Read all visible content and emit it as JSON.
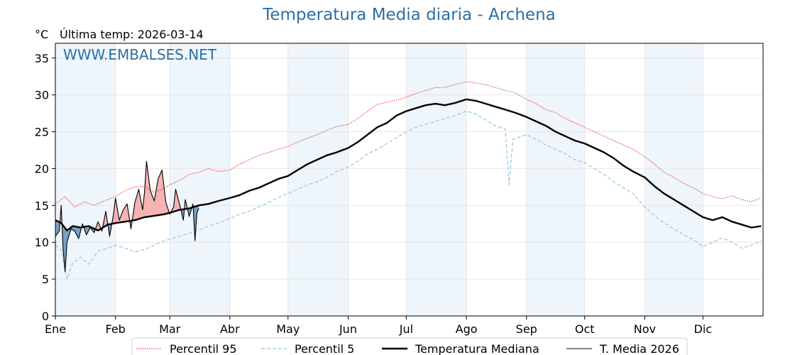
{
  "header": {
    "title": "Temperatura Media diaria - Archena",
    "unit": "°C",
    "last_temp": "Última temp: 2026-03-14"
  },
  "watermark": "WWW.EMBALSES.NET",
  "colors": {
    "p95": "#e8201c",
    "p5": "#8ec9d9",
    "median": "#000000",
    "current": "#000000",
    "above_fill": "#f4a6a6",
    "below_fill": "#5b8bb5",
    "band_fill": "#eef5fb",
    "title": "#2c6fa3"
  },
  "chart_data": {
    "type": "line",
    "title": "Temperatura Media diaria - Archena",
    "ylabel": "°C",
    "xlabel": "",
    "ylim": [
      0,
      37
    ],
    "xlim": [
      0,
      365
    ],
    "yticks": [
      0,
      5,
      10,
      15,
      20,
      25,
      30,
      35
    ],
    "month_ticks": [
      {
        "label": "Ene",
        "day": 0
      },
      {
        "label": "Feb",
        "day": 31
      },
      {
        "label": "Mar",
        "day": 59
      },
      {
        "label": "Abr",
        "day": 90
      },
      {
        "label": "May",
        "day": 120
      },
      {
        "label": "Jun",
        "day": 151
      },
      {
        "label": "Jul",
        "day": 181
      },
      {
        "label": "Ago",
        "day": 212
      },
      {
        "label": "Sep",
        "day": 243
      },
      {
        "label": "Oct",
        "day": 273
      },
      {
        "label": "Nov",
        "day": 304
      },
      {
        "label": "Dic",
        "day": 334
      }
    ],
    "shaded_months": [
      [
        0,
        31
      ],
      [
        59,
        90
      ],
      [
        120,
        151
      ],
      [
        181,
        212
      ],
      [
        243,
        273
      ],
      [
        304,
        334
      ]
    ],
    "grid": true,
    "legend_position": "bottom",
    "series": [
      {
        "name": "Percentil 95",
        "style": "dotted-red",
        "points": [
          [
            0,
            15.2
          ],
          [
            5,
            16.2
          ],
          [
            10,
            14.8
          ],
          [
            15,
            15.5
          ],
          [
            20,
            15.0
          ],
          [
            25,
            15.6
          ],
          [
            31,
            16.2
          ],
          [
            36,
            17.0
          ],
          [
            41,
            17.5
          ],
          [
            46,
            17.6
          ],
          [
            51,
            16.8
          ],
          [
            56,
            17.3
          ],
          [
            59,
            17.8
          ],
          [
            64,
            18.4
          ],
          [
            69,
            19.2
          ],
          [
            74,
            19.5
          ],
          [
            79,
            20.0
          ],
          [
            84,
            19.6
          ],
          [
            90,
            19.8
          ],
          [
            95,
            20.6
          ],
          [
            100,
            21.2
          ],
          [
            105,
            21.8
          ],
          [
            110,
            22.2
          ],
          [
            115,
            22.6
          ],
          [
            120,
            23.0
          ],
          [
            125,
            23.6
          ],
          [
            130,
            24.1
          ],
          [
            135,
            24.6
          ],
          [
            140,
            25.2
          ],
          [
            145,
            25.7
          ],
          [
            151,
            26.0
          ],
          [
            156,
            26.8
          ],
          [
            161,
            27.8
          ],
          [
            166,
            28.7
          ],
          [
            171,
            29.0
          ],
          [
            176,
            29.3
          ],
          [
            181,
            29.7
          ],
          [
            186,
            30.2
          ],
          [
            191,
            30.6
          ],
          [
            196,
            31.0
          ],
          [
            201,
            31.0
          ],
          [
            206,
            31.4
          ],
          [
            212,
            31.8
          ],
          [
            217,
            31.6
          ],
          [
            222,
            31.4
          ],
          [
            227,
            31.0
          ],
          [
            232,
            30.6
          ],
          [
            237,
            30.3
          ],
          [
            243,
            29.4
          ],
          [
            248,
            28.8
          ],
          [
            253,
            28.0
          ],
          [
            258,
            27.6
          ],
          [
            263,
            26.8
          ],
          [
            268,
            26.2
          ],
          [
            273,
            25.6
          ],
          [
            278,
            25.0
          ],
          [
            283,
            24.4
          ],
          [
            288,
            23.8
          ],
          [
            293,
            23.2
          ],
          [
            298,
            22.6
          ],
          [
            304,
            21.6
          ],
          [
            309,
            20.6
          ],
          [
            314,
            19.5
          ],
          [
            319,
            18.8
          ],
          [
            324,
            18.0
          ],
          [
            329,
            17.4
          ],
          [
            334,
            16.6
          ],
          [
            339,
            16.2
          ],
          [
            344,
            15.9
          ],
          [
            349,
            16.3
          ],
          [
            354,
            15.8
          ],
          [
            359,
            15.5
          ],
          [
            364,
            16.0
          ]
        ]
      },
      {
        "name": "Percentil 5",
        "style": "dashed-lightblue",
        "points": [
          [
            0,
            9.6
          ],
          [
            3,
            9.0
          ],
          [
            6,
            5.0
          ],
          [
            9,
            7.2
          ],
          [
            13,
            8.0
          ],
          [
            17,
            7.0
          ],
          [
            22,
            8.8
          ],
          [
            27,
            9.2
          ],
          [
            31,
            9.6
          ],
          [
            36,
            9.2
          ],
          [
            41,
            8.7
          ],
          [
            46,
            9.0
          ],
          [
            51,
            9.6
          ],
          [
            56,
            10.2
          ],
          [
            59,
            10.4
          ],
          [
            64,
            10.8
          ],
          [
            69,
            11.2
          ],
          [
            74,
            11.7
          ],
          [
            79,
            12.2
          ],
          [
            84,
            12.6
          ],
          [
            90,
            13.2
          ],
          [
            95,
            13.8
          ],
          [
            100,
            14.2
          ],
          [
            105,
            14.8
          ],
          [
            110,
            15.4
          ],
          [
            115,
            16.1
          ],
          [
            120,
            16.6
          ],
          [
            125,
            17.2
          ],
          [
            130,
            17.8
          ],
          [
            135,
            18.2
          ],
          [
            140,
            18.8
          ],
          [
            145,
            19.6
          ],
          [
            151,
            20.2
          ],
          [
            156,
            21.0
          ],
          [
            161,
            22.0
          ],
          [
            166,
            22.6
          ],
          [
            171,
            23.4
          ],
          [
            176,
            24.2
          ],
          [
            181,
            25.0
          ],
          [
            186,
            25.6
          ],
          [
            191,
            26.0
          ],
          [
            196,
            26.4
          ],
          [
            201,
            26.8
          ],
          [
            206,
            27.2
          ],
          [
            212,
            27.8
          ],
          [
            217,
            27.4
          ],
          [
            222,
            26.6
          ],
          [
            227,
            25.8
          ],
          [
            232,
            25.4
          ],
          [
            234,
            17.8
          ],
          [
            236,
            24.0
          ],
          [
            243,
            24.6
          ],
          [
            248,
            24.0
          ],
          [
            253,
            23.2
          ],
          [
            258,
            22.6
          ],
          [
            263,
            22.0
          ],
          [
            268,
            21.2
          ],
          [
            273,
            20.8
          ],
          [
            278,
            20.0
          ],
          [
            283,
            19.2
          ],
          [
            288,
            18.2
          ],
          [
            293,
            17.4
          ],
          [
            298,
            16.6
          ],
          [
            304,
            14.8
          ],
          [
            309,
            13.6
          ],
          [
            314,
            12.6
          ],
          [
            319,
            11.8
          ],
          [
            324,
            11.0
          ],
          [
            329,
            10.4
          ],
          [
            334,
            9.4
          ],
          [
            339,
            10.0
          ],
          [
            344,
            10.6
          ],
          [
            349,
            10.0
          ],
          [
            354,
            9.2
          ],
          [
            359,
            9.6
          ],
          [
            364,
            10.2
          ]
        ]
      },
      {
        "name": "Temperatura Mediana",
        "style": "solid-black-thick",
        "points": [
          [
            0,
            13.0
          ],
          [
            3,
            12.6
          ],
          [
            6,
            11.6
          ],
          [
            9,
            12.2
          ],
          [
            13,
            12.0
          ],
          [
            17,
            12.2
          ],
          [
            22,
            11.6
          ],
          [
            27,
            12.4
          ],
          [
            31,
            12.6
          ],
          [
            36,
            12.8
          ],
          [
            41,
            13.0
          ],
          [
            46,
            13.4
          ],
          [
            51,
            13.6
          ],
          [
            56,
            13.8
          ],
          [
            59,
            14.0
          ],
          [
            64,
            14.4
          ],
          [
            69,
            14.6
          ],
          [
            74,
            15.0
          ],
          [
            79,
            15.2
          ],
          [
            84,
            15.6
          ],
          [
            90,
            16.0
          ],
          [
            95,
            16.4
          ],
          [
            100,
            17.0
          ],
          [
            105,
            17.4
          ],
          [
            110,
            18.0
          ],
          [
            115,
            18.6
          ],
          [
            120,
            19.0
          ],
          [
            125,
            19.8
          ],
          [
            130,
            20.6
          ],
          [
            135,
            21.2
          ],
          [
            140,
            21.8
          ],
          [
            145,
            22.2
          ],
          [
            151,
            22.8
          ],
          [
            156,
            23.6
          ],
          [
            161,
            24.6
          ],
          [
            166,
            25.6
          ],
          [
            171,
            26.2
          ],
          [
            176,
            27.2
          ],
          [
            181,
            27.8
          ],
          [
            186,
            28.2
          ],
          [
            191,
            28.6
          ],
          [
            196,
            28.8
          ],
          [
            201,
            28.6
          ],
          [
            206,
            28.9
          ],
          [
            212,
            29.4
          ],
          [
            217,
            29.2
          ],
          [
            222,
            28.8
          ],
          [
            227,
            28.4
          ],
          [
            232,
            28.0
          ],
          [
            237,
            27.6
          ],
          [
            243,
            27.0
          ],
          [
            248,
            26.4
          ],
          [
            253,
            25.8
          ],
          [
            258,
            25.0
          ],
          [
            263,
            24.4
          ],
          [
            268,
            23.8
          ],
          [
            273,
            23.4
          ],
          [
            278,
            22.8
          ],
          [
            283,
            22.2
          ],
          [
            288,
            21.4
          ],
          [
            293,
            20.4
          ],
          [
            298,
            19.6
          ],
          [
            304,
            18.8
          ],
          [
            309,
            17.6
          ],
          [
            314,
            16.6
          ],
          [
            319,
            15.8
          ],
          [
            324,
            15.0
          ],
          [
            329,
            14.2
          ],
          [
            334,
            13.4
          ],
          [
            339,
            13.0
          ],
          [
            344,
            13.4
          ],
          [
            349,
            12.8
          ],
          [
            354,
            12.4
          ],
          [
            359,
            12.0
          ],
          [
            364,
            12.2
          ]
        ]
      },
      {
        "name": "T. Media 2026",
        "style": "solid-black-thin",
        "points": [
          [
            0,
            10.8
          ],
          [
            2,
            11.5
          ],
          [
            3,
            15.0
          ],
          [
            4,
            9.0
          ],
          [
            5,
            6.0
          ],
          [
            6,
            10.0
          ],
          [
            8,
            11.8
          ],
          [
            10,
            11.5
          ],
          [
            12,
            10.5
          ],
          [
            14,
            12.5
          ],
          [
            16,
            11.0
          ],
          [
            18,
            12.0
          ],
          [
            20,
            11.3
          ],
          [
            22,
            12.8
          ],
          [
            24,
            11.5
          ],
          [
            26,
            14.2
          ],
          [
            28,
            10.8
          ],
          [
            30,
            13.8
          ],
          [
            31,
            16.0
          ],
          [
            33,
            13.0
          ],
          [
            35,
            14.4
          ],
          [
            37,
            15.2
          ],
          [
            39,
            11.8
          ],
          [
            41,
            15.4
          ],
          [
            43,
            17.2
          ],
          [
            45,
            14.4
          ],
          [
            46,
            16.8
          ],
          [
            47,
            21.0
          ],
          [
            49,
            17.0
          ],
          [
            51,
            15.6
          ],
          [
            53,
            18.6
          ],
          [
            55,
            19.8
          ],
          [
            57,
            15.4
          ],
          [
            59,
            13.8
          ],
          [
            61,
            14.8
          ],
          [
            62,
            17.2
          ],
          [
            64,
            15.2
          ],
          [
            66,
            13.0
          ],
          [
            67,
            15.8
          ],
          [
            69,
            13.5
          ],
          [
            71,
            15.2
          ],
          [
            72,
            10.2
          ],
          [
            73,
            14.0
          ],
          [
            74,
            14.6
          ]
        ]
      }
    ]
  },
  "legend": [
    {
      "label": "Percentil 95",
      "style": "dotted-red"
    },
    {
      "label": "Percentil 5",
      "style": "dashed-lightblue"
    },
    {
      "label": "Temperatura Mediana",
      "style": "solid-black-thick"
    },
    {
      "label": "T. Media 2026",
      "style": "solid-black-thin"
    }
  ]
}
